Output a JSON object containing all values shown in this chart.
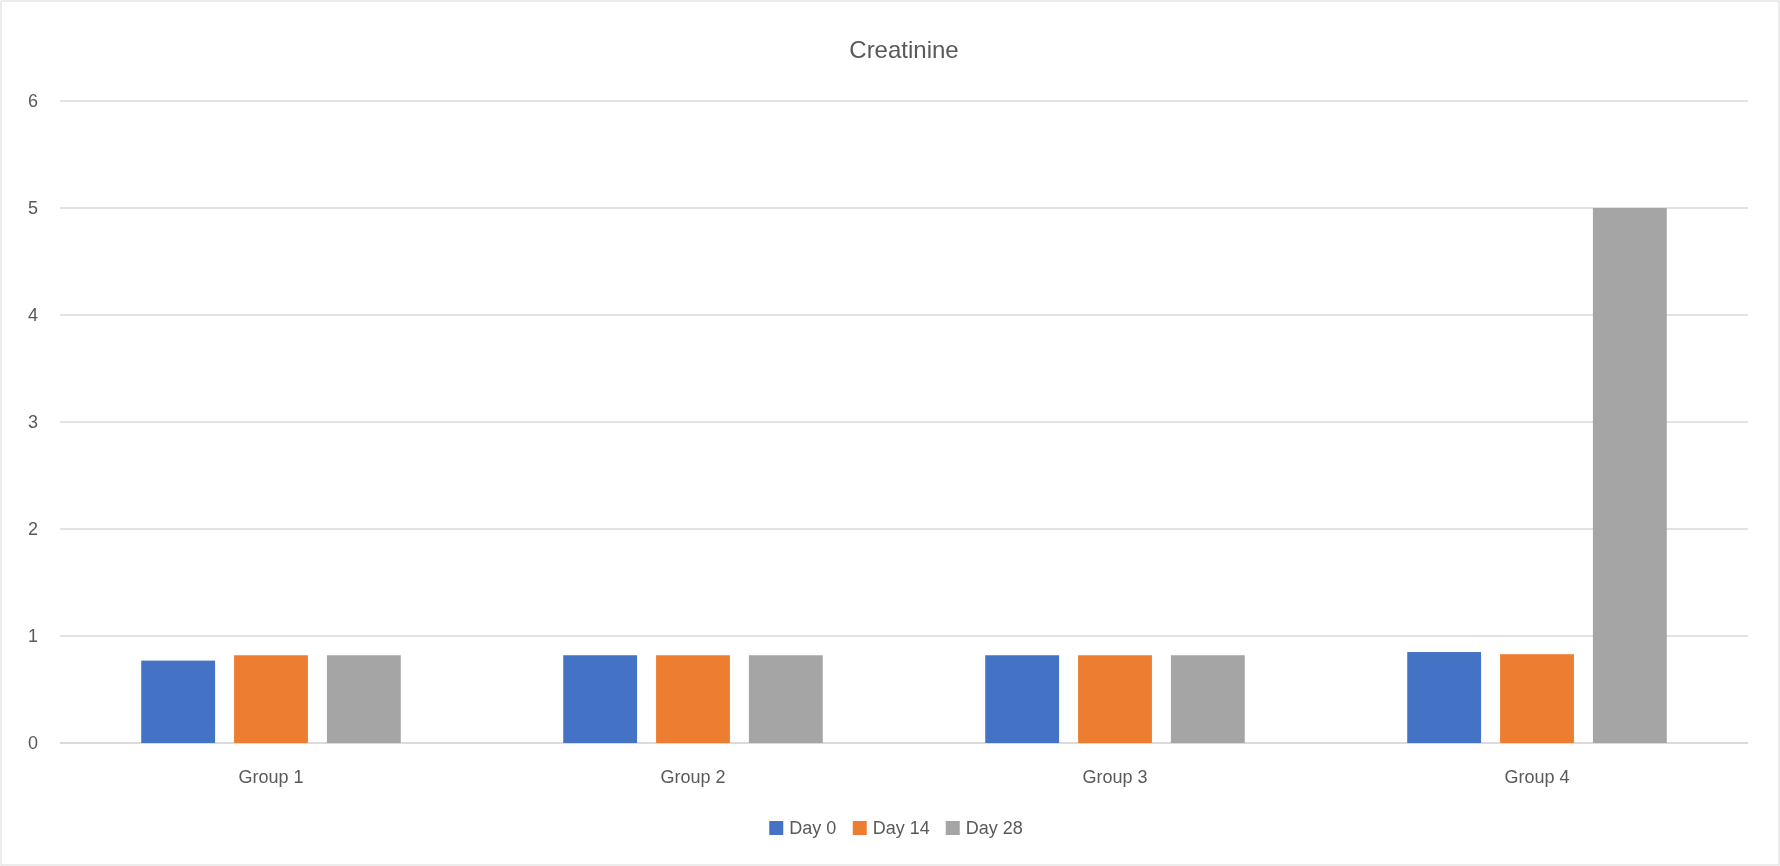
{
  "chart_data": {
    "type": "bar",
    "title": "Creatinine",
    "categories": [
      "Group 1",
      "Group 2",
      "Group 3",
      "Group 4"
    ],
    "series": [
      {
        "name": "Day 0",
        "color": "#4472c4",
        "values": [
          0.77,
          0.82,
          0.82,
          0.85
        ]
      },
      {
        "name": "Day 14",
        "color": "#ed7d31",
        "values": [
          0.82,
          0.82,
          0.82,
          0.83
        ]
      },
      {
        "name": "Day 28",
        "color": "#a5a5a5",
        "values": [
          0.82,
          0.82,
          0.82,
          5.0
        ]
      }
    ],
    "ylim": [
      0,
      6
    ],
    "yticks": [
      0,
      1,
      2,
      3,
      4,
      5,
      6
    ],
    "grid": "y",
    "legend": "bottom"
  }
}
